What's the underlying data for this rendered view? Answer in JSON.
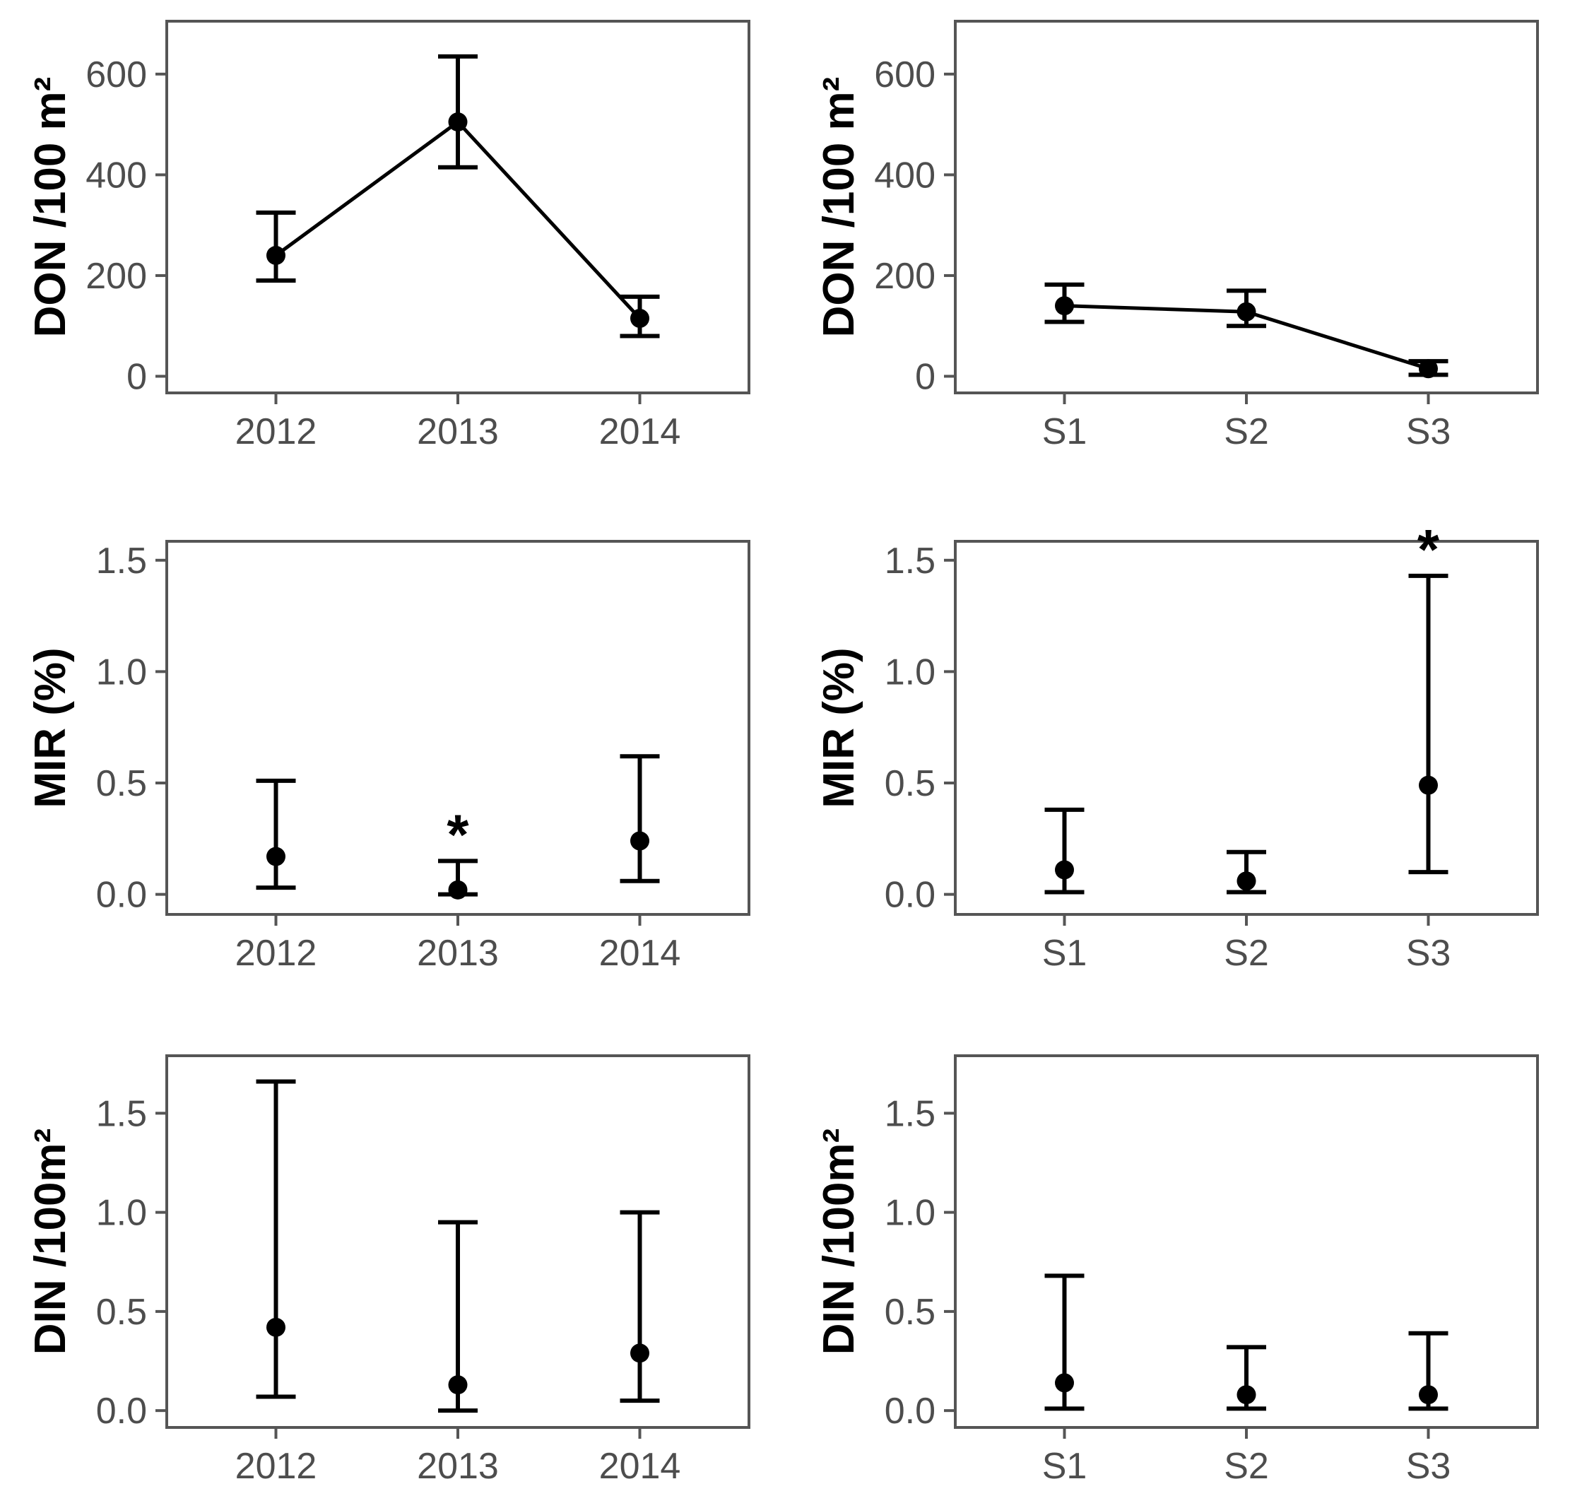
{
  "figure": {
    "description": "Six-panel point-and-error-bar figure; rows are DON, MIR and DIN metrics, left column by year, right column by station",
    "background": "#ffffff",
    "significance_marker": "*"
  },
  "style": {
    "frame_color": "#555555",
    "tick_mark_color": "#555555",
    "tick_label_color": "#4d4d4d",
    "axis_title_color": "#000000",
    "data_color": "#000000"
  },
  "chart_data": [
    {
      "id": "don-by-year",
      "type": "scatter",
      "row": 0,
      "col": 0,
      "ylabel": "DON /100 m²",
      "xlabel": "",
      "categories": [
        "2012",
        "2013",
        "2014"
      ],
      "ylim": [
        -33,
        705
      ],
      "yticks": [
        0,
        200,
        400,
        600
      ],
      "ytick_labels": [
        "0",
        "200",
        "400",
        "600"
      ],
      "grid": false,
      "connected": true,
      "points": [
        {
          "x": "2012",
          "mean": 240,
          "lower": 190,
          "upper": 325,
          "significant": false
        },
        {
          "x": "2013",
          "mean": 505,
          "lower": 415,
          "upper": 635,
          "significant": false
        },
        {
          "x": "2014",
          "mean": 115,
          "lower": 80,
          "upper": 158,
          "significant": false
        }
      ]
    },
    {
      "id": "don-by-station",
      "type": "scatter",
      "row": 0,
      "col": 1,
      "ylabel": "DON /100 m²",
      "xlabel": "",
      "categories": [
        "S1",
        "S2",
        "S3"
      ],
      "ylim": [
        -33,
        705
      ],
      "yticks": [
        0,
        200,
        400,
        600
      ],
      "ytick_labels": [
        "0",
        "200",
        "400",
        "600"
      ],
      "grid": false,
      "connected": true,
      "points": [
        {
          "x": "S1",
          "mean": 140,
          "lower": 108,
          "upper": 182,
          "significant": false
        },
        {
          "x": "S2",
          "mean": 128,
          "lower": 100,
          "upper": 170,
          "significant": false
        },
        {
          "x": "S3",
          "mean": 15,
          "lower": 3,
          "upper": 30,
          "significant": false
        }
      ]
    },
    {
      "id": "mir-by-year",
      "type": "scatter",
      "row": 1,
      "col": 0,
      "ylabel": "MIR (%)",
      "xlabel": "",
      "categories": [
        "2012",
        "2013",
        "2014"
      ],
      "ylim": [
        -0.09,
        1.585
      ],
      "yticks": [
        0.0,
        0.5,
        1.0,
        1.5
      ],
      "ytick_labels": [
        "0.0",
        "0.5",
        "1.0",
        "1.5"
      ],
      "grid": false,
      "connected": false,
      "points": [
        {
          "x": "2012",
          "mean": 0.17,
          "lower": 0.03,
          "upper": 0.51,
          "significant": false
        },
        {
          "x": "2013",
          "mean": 0.02,
          "lower": 0.0,
          "upper": 0.15,
          "significant": true
        },
        {
          "x": "2014",
          "mean": 0.24,
          "lower": 0.06,
          "upper": 0.62,
          "significant": false
        }
      ]
    },
    {
      "id": "mir-by-station",
      "type": "scatter",
      "row": 1,
      "col": 1,
      "ylabel": "MIR (%)",
      "xlabel": "",
      "categories": [
        "S1",
        "S2",
        "S3"
      ],
      "ylim": [
        -0.09,
        1.585
      ],
      "yticks": [
        0.0,
        0.5,
        1.0,
        1.5
      ],
      "ytick_labels": [
        "0.0",
        "0.5",
        "1.0",
        "1.5"
      ],
      "grid": false,
      "connected": false,
      "points": [
        {
          "x": "S1",
          "mean": 0.11,
          "lower": 0.01,
          "upper": 0.38,
          "significant": false
        },
        {
          "x": "S2",
          "mean": 0.06,
          "lower": 0.01,
          "upper": 0.19,
          "significant": false
        },
        {
          "x": "S3",
          "mean": 0.49,
          "lower": 0.1,
          "upper": 1.43,
          "significant": true
        }
      ]
    },
    {
      "id": "din-by-year",
      "type": "scatter",
      "row": 2,
      "col": 0,
      "ylabel": "DIN /100m²",
      "xlabel": "",
      "categories": [
        "2012",
        "2013",
        "2014"
      ],
      "ylim": [
        -0.085,
        1.79
      ],
      "yticks": [
        0.0,
        0.5,
        1.0,
        1.5
      ],
      "ytick_labels": [
        "0.0",
        "0.5",
        "1.0",
        "1.5"
      ],
      "grid": false,
      "connected": false,
      "points": [
        {
          "x": "2012",
          "mean": 0.42,
          "lower": 0.07,
          "upper": 1.66,
          "significant": false
        },
        {
          "x": "2013",
          "mean": 0.13,
          "lower": 0.0,
          "upper": 0.95,
          "significant": false
        },
        {
          "x": "2014",
          "mean": 0.29,
          "lower": 0.05,
          "upper": 1.0,
          "significant": false
        }
      ]
    },
    {
      "id": "din-by-station",
      "type": "scatter",
      "row": 2,
      "col": 1,
      "ylabel": "DIN /100m²",
      "xlabel": "",
      "categories": [
        "S1",
        "S2",
        "S3"
      ],
      "ylim": [
        -0.085,
        1.79
      ],
      "yticks": [
        0.0,
        0.5,
        1.0,
        1.5
      ],
      "ytick_labels": [
        "0.0",
        "0.5",
        "1.0",
        "1.5"
      ],
      "grid": false,
      "connected": false,
      "points": [
        {
          "x": "S1",
          "mean": 0.14,
          "lower": 0.01,
          "upper": 0.68,
          "significant": false
        },
        {
          "x": "S2",
          "mean": 0.08,
          "lower": 0.01,
          "upper": 0.32,
          "significant": false
        },
        {
          "x": "S3",
          "mean": 0.08,
          "lower": 0.01,
          "upper": 0.39,
          "significant": false
        }
      ]
    }
  ]
}
